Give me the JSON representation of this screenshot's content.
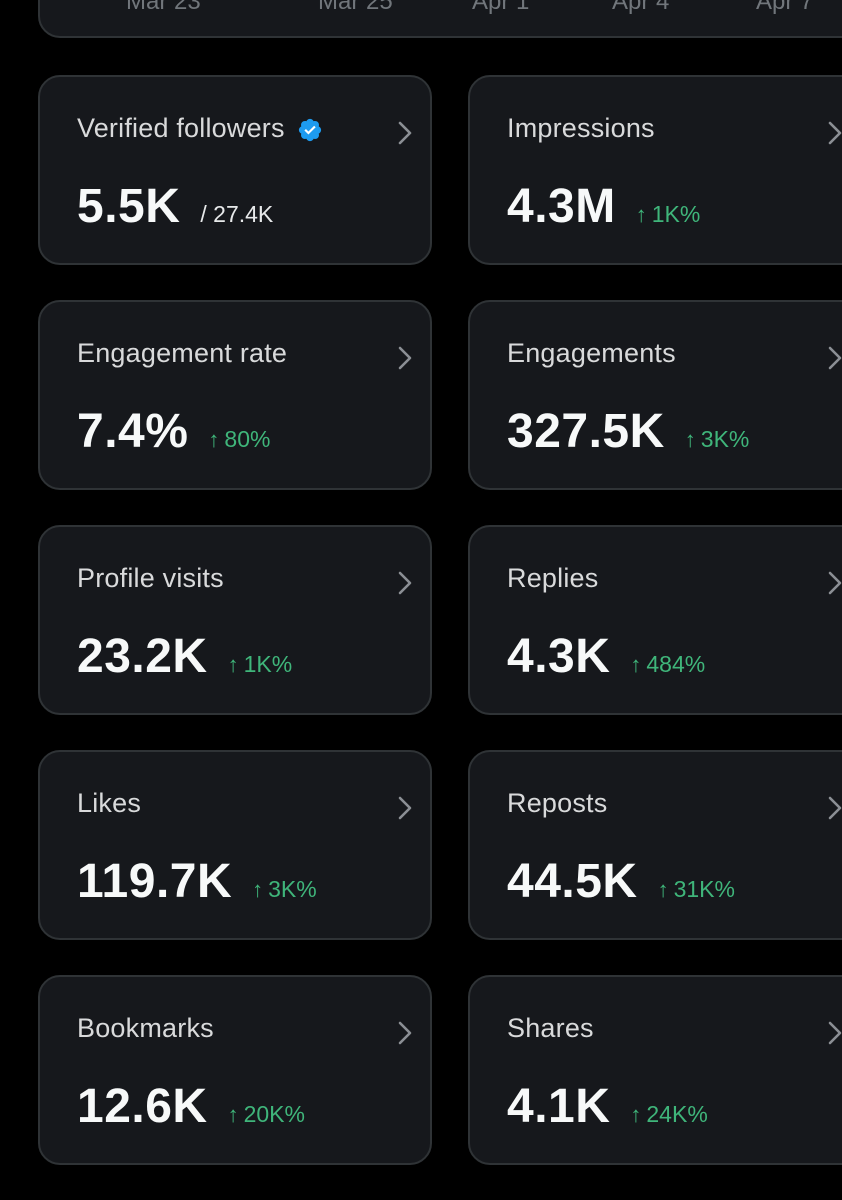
{
  "chart_axis": {
    "labels": [
      "Mar 23",
      "Mar 25",
      "Apr 1",
      "Apr 4",
      "Apr 7"
    ]
  },
  "colors": {
    "background": "#000000",
    "card": "#16181c",
    "border": "#2f3336",
    "positive": "#3fb57a",
    "verified": "#1d9bf0"
  },
  "metrics": [
    {
      "title": "Verified followers",
      "value": "5.5K",
      "sub": "/ 27.4K",
      "change": "",
      "verified": true
    },
    {
      "title": "Impressions",
      "value": "4.3M",
      "sub": "",
      "change": "1K%",
      "verified": false
    },
    {
      "title": "Engagement rate",
      "value": "7.4%",
      "sub": "",
      "change": "80%",
      "verified": false
    },
    {
      "title": "Engagements",
      "value": "327.5K",
      "sub": "",
      "change": "3K%",
      "verified": false
    },
    {
      "title": "Profile visits",
      "value": "23.2K",
      "sub": "",
      "change": "1K%",
      "verified": false
    },
    {
      "title": "Replies",
      "value": "4.3K",
      "sub": "",
      "change": "484%",
      "verified": false
    },
    {
      "title": "Likes",
      "value": "119.7K",
      "sub": "",
      "change": "3K%",
      "verified": false
    },
    {
      "title": "Reposts",
      "value": "44.5K",
      "sub": "",
      "change": "31K%",
      "verified": false
    },
    {
      "title": "Bookmarks",
      "value": "12.6K",
      "sub": "",
      "change": "20K%",
      "verified": false
    },
    {
      "title": "Shares",
      "value": "4.1K",
      "sub": "",
      "change": "24K%",
      "verified": false
    }
  ]
}
